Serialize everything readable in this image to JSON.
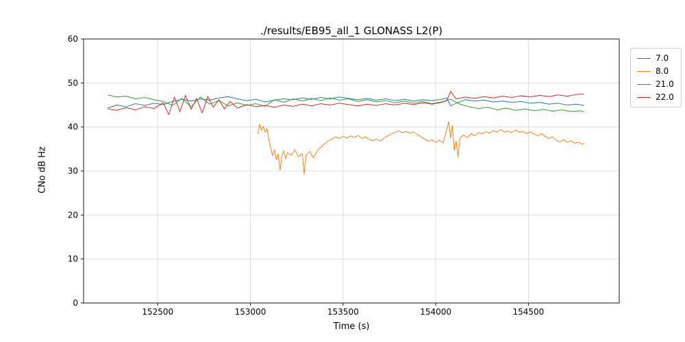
{
  "title": "./results/EB95_all_1 GLONASS L2(P)",
  "chart_data": {
    "type": "line",
    "title": "./results/EB95_all_1 GLONASS L2(P)",
    "xlabel": "Time (s)",
    "ylabel": "CNo dB Hz",
    "xlim": [
      152100,
      154990
    ],
    "ylim": [
      0,
      60
    ],
    "xticks": [
      152500,
      153000,
      153500,
      154000,
      154500
    ],
    "yticks": [
      0,
      10,
      20,
      30,
      40,
      50,
      60
    ],
    "grid": true,
    "grid_color": "#d9d9d9",
    "legend_position": "outside-top-right",
    "series": [
      {
        "name": "7.0",
        "color": "#1f77b4",
        "points": [
          [
            152230,
            44.3
          ],
          [
            152280,
            45.0
          ],
          [
            152330,
            44.6
          ],
          [
            152380,
            45.3
          ],
          [
            152430,
            44.9
          ],
          [
            152480,
            45.4
          ],
          [
            152530,
            45.1
          ],
          [
            152580,
            45.8
          ],
          [
            152630,
            46.3
          ],
          [
            152680,
            45.9
          ],
          [
            152730,
            46.4
          ],
          [
            152780,
            46.1
          ],
          [
            152830,
            46.6
          ],
          [
            152880,
            46.9
          ],
          [
            152930,
            46.4
          ],
          [
            152980,
            46.0
          ],
          [
            153030,
            46.3
          ],
          [
            153080,
            45.7
          ],
          [
            153130,
            46.1
          ],
          [
            153180,
            46.4
          ],
          [
            153230,
            46.2
          ],
          [
            153280,
            46.6
          ],
          [
            153330,
            46.3
          ],
          [
            153380,
            46.7
          ],
          [
            153430,
            46.4
          ],
          [
            153480,
            46.8
          ],
          [
            153530,
            46.5
          ],
          [
            153580,
            46.2
          ],
          [
            153630,
            46.5
          ],
          [
            153680,
            46.1
          ],
          [
            153730,
            46.4
          ],
          [
            153780,
            46.0
          ],
          [
            153830,
            46.3
          ],
          [
            153880,
            45.9
          ],
          [
            153930,
            46.2
          ],
          [
            153980,
            46.0
          ],
          [
            154030,
            46.3
          ],
          [
            154060,
            46.6
          ],
          [
            154080,
            44.8
          ],
          [
            154110,
            45.4
          ],
          [
            154160,
            46.2
          ],
          [
            154210,
            45.9
          ],
          [
            154260,
            46.1
          ],
          [
            154310,
            45.7
          ],
          [
            154360,
            45.9
          ],
          [
            154410,
            45.6
          ],
          [
            154460,
            45.8
          ],
          [
            154510,
            45.4
          ],
          [
            154560,
            45.6
          ],
          [
            154610,
            45.2
          ],
          [
            154660,
            45.4
          ],
          [
            154710,
            45.0
          ],
          [
            154760,
            45.2
          ],
          [
            154800,
            44.9
          ]
        ]
      },
      {
        "name": "8.0",
        "color": "#ff7f0e",
        "points": [
          [
            153040,
            38.4
          ],
          [
            153050,
            40.6
          ],
          [
            153060,
            39.2
          ],
          [
            153070,
            40.1
          ],
          [
            153080,
            38.8
          ],
          [
            153090,
            39.6
          ],
          [
            153100,
            37.0
          ],
          [
            153110,
            35.2
          ],
          [
            153120,
            33.5
          ],
          [
            153130,
            34.8
          ],
          [
            153140,
            32.6
          ],
          [
            153150,
            33.9
          ],
          [
            153160,
            30.2
          ],
          [
            153170,
            33.4
          ],
          [
            153180,
            34.6
          ],
          [
            153190,
            32.8
          ],
          [
            153200,
            34.2
          ],
          [
            153220,
            33.5
          ],
          [
            153240,
            34.8
          ],
          [
            153260,
            33.2
          ],
          [
            153280,
            34.0
          ],
          [
            153290,
            29.3
          ],
          [
            153300,
            33.6
          ],
          [
            153320,
            34.4
          ],
          [
            153340,
            33.0
          ],
          [
            153360,
            34.6
          ],
          [
            153380,
            35.4
          ],
          [
            153400,
            36.2
          ],
          [
            153420,
            36.8
          ],
          [
            153440,
            37.3
          ],
          [
            153460,
            37.8
          ],
          [
            153480,
            37.4
          ],
          [
            153500,
            37.9
          ],
          [
            153520,
            37.5
          ],
          [
            153540,
            38.0
          ],
          [
            153560,
            37.6
          ],
          [
            153580,
            38.1
          ],
          [
            153600,
            37.4
          ],
          [
            153620,
            37.8
          ],
          [
            153640,
            37.2
          ],
          [
            153660,
            36.9
          ],
          [
            153680,
            37.3
          ],
          [
            153700,
            36.8
          ],
          [
            153720,
            37.5
          ],
          [
            153740,
            38.0
          ],
          [
            153760,
            38.4
          ],
          [
            153780,
            38.8
          ],
          [
            153800,
            39.1
          ],
          [
            153820,
            38.7
          ],
          [
            153840,
            39.0
          ],
          [
            153860,
            38.6
          ],
          [
            153880,
            38.9
          ],
          [
            153900,
            38.3
          ],
          [
            153920,
            37.8
          ],
          [
            153940,
            37.2
          ],
          [
            153960,
            36.8
          ],
          [
            153980,
            37.1
          ],
          [
            154000,
            36.5
          ],
          [
            154020,
            37.0
          ],
          [
            154040,
            36.4
          ],
          [
            154060,
            39.5
          ],
          [
            154070,
            41.2
          ],
          [
            154080,
            37.5
          ],
          [
            154090,
            40.3
          ],
          [
            154100,
            34.6
          ],
          [
            154110,
            36.8
          ],
          [
            154120,
            33.2
          ],
          [
            154130,
            37.4
          ],
          [
            154150,
            38.2
          ],
          [
            154170,
            37.6
          ],
          [
            154190,
            38.5
          ],
          [
            154210,
            38.0
          ],
          [
            154230,
            38.8
          ],
          [
            154250,
            38.4
          ],
          [
            154270,
            39.0
          ],
          [
            154290,
            38.6
          ],
          [
            154310,
            39.2
          ],
          [
            154330,
            38.8
          ],
          [
            154350,
            39.4
          ],
          [
            154370,
            38.9
          ],
          [
            154390,
            39.1
          ],
          [
            154410,
            38.7
          ],
          [
            154430,
            39.3
          ],
          [
            154450,
            38.8
          ],
          [
            154470,
            39.0
          ],
          [
            154490,
            38.5
          ],
          [
            154510,
            38.9
          ],
          [
            154530,
            38.4
          ],
          [
            154550,
            38.0
          ],
          [
            154570,
            38.5
          ],
          [
            154590,
            37.9
          ],
          [
            154610,
            37.4
          ],
          [
            154630,
            37.8
          ],
          [
            154650,
            37.0
          ],
          [
            154670,
            36.6
          ],
          [
            154690,
            37.1
          ],
          [
            154710,
            36.5
          ],
          [
            154730,
            36.9
          ],
          [
            154750,
            36.3
          ],
          [
            154770,
            36.6
          ],
          [
            154790,
            36.1
          ],
          [
            154800,
            36.3
          ]
        ]
      },
      {
        "name": "21.0",
        "color": "#2ca02c",
        "points": [
          [
            152230,
            47.3
          ],
          [
            152280,
            46.8
          ],
          [
            152330,
            47.0
          ],
          [
            152380,
            46.4
          ],
          [
            152430,
            46.7
          ],
          [
            152480,
            46.2
          ],
          [
            152530,
            45.8
          ],
          [
            152580,
            44.9
          ],
          [
            152630,
            46.5
          ],
          [
            152680,
            44.6
          ],
          [
            152730,
            46.8
          ],
          [
            152780,
            45.2
          ],
          [
            152830,
            46.0
          ],
          [
            152880,
            44.8
          ],
          [
            152930,
            45.5
          ],
          [
            152980,
            44.9
          ],
          [
            153030,
            45.3
          ],
          [
            153080,
            44.7
          ],
          [
            153130,
            46.2
          ],
          [
            153180,
            45.6
          ],
          [
            153230,
            46.4
          ],
          [
            153280,
            45.9
          ],
          [
            153330,
            46.5
          ],
          [
            153380,
            46.0
          ],
          [
            153430,
            46.6
          ],
          [
            153480,
            46.1
          ],
          [
            153530,
            46.4
          ],
          [
            153580,
            45.8
          ],
          [
            153630,
            46.2
          ],
          [
            153680,
            45.7
          ],
          [
            153730,
            46.0
          ],
          [
            153780,
            45.5
          ],
          [
            153830,
            45.9
          ],
          [
            153880,
            45.4
          ],
          [
            153930,
            45.8
          ],
          [
            153980,
            45.3
          ],
          [
            154030,
            45.7
          ],
          [
            154080,
            46.3
          ],
          [
            154130,
            45.2
          ],
          [
            154180,
            44.6
          ],
          [
            154230,
            44.2
          ],
          [
            154280,
            44.5
          ],
          [
            154330,
            43.9
          ],
          [
            154380,
            44.3
          ],
          [
            154430,
            43.8
          ],
          [
            154480,
            44.1
          ],
          [
            154530,
            43.7
          ],
          [
            154580,
            44.0
          ],
          [
            154630,
            43.6
          ],
          [
            154680,
            43.9
          ],
          [
            154730,
            43.5
          ],
          [
            154780,
            43.7
          ],
          [
            154800,
            43.4
          ]
        ]
      },
      {
        "name": "22.0",
        "color": "#d62728",
        "points": [
          [
            152230,
            44.1
          ],
          [
            152280,
            43.8
          ],
          [
            152330,
            44.4
          ],
          [
            152380,
            43.9
          ],
          [
            152430,
            44.6
          ],
          [
            152480,
            44.2
          ],
          [
            152530,
            45.5
          ],
          [
            152560,
            42.8
          ],
          [
            152590,
            46.8
          ],
          [
            152620,
            43.5
          ],
          [
            152650,
            47.2
          ],
          [
            152680,
            44.0
          ],
          [
            152710,
            46.5
          ],
          [
            152740,
            43.2
          ],
          [
            152770,
            46.9
          ],
          [
            152800,
            44.5
          ],
          [
            152830,
            46.2
          ],
          [
            152860,
            44.1
          ],
          [
            152890,
            45.8
          ],
          [
            152930,
            44.3
          ],
          [
            152980,
            45.1
          ],
          [
            153030,
            44.6
          ],
          [
            153080,
            44.9
          ],
          [
            153130,
            44.5
          ],
          [
            153180,
            45.0
          ],
          [
            153230,
            44.7
          ],
          [
            153280,
            45.2
          ],
          [
            153330,
            44.8
          ],
          [
            153380,
            45.3
          ],
          [
            153430,
            45.0
          ],
          [
            153480,
            45.4
          ],
          [
            153530,
            45.1
          ],
          [
            153580,
            44.8
          ],
          [
            153630,
            45.2
          ],
          [
            153680,
            44.9
          ],
          [
            153730,
            45.3
          ],
          [
            153780,
            45.0
          ],
          [
            153830,
            45.4
          ],
          [
            153880,
            45.1
          ],
          [
            153930,
            45.5
          ],
          [
            153980,
            45.2
          ],
          [
            154030,
            45.6
          ],
          [
            154060,
            46.0
          ],
          [
            154080,
            48.1
          ],
          [
            154110,
            46.4
          ],
          [
            154160,
            46.8
          ],
          [
            154210,
            46.5
          ],
          [
            154260,
            46.9
          ],
          [
            154310,
            46.6
          ],
          [
            154360,
            47.0
          ],
          [
            154410,
            46.7
          ],
          [
            154460,
            47.1
          ],
          [
            154510,
            46.8
          ],
          [
            154560,
            47.2
          ],
          [
            154610,
            46.9
          ],
          [
            154660,
            47.3
          ],
          [
            154710,
            47.0
          ],
          [
            154760,
            47.4
          ],
          [
            154800,
            47.5
          ]
        ]
      }
    ]
  }
}
